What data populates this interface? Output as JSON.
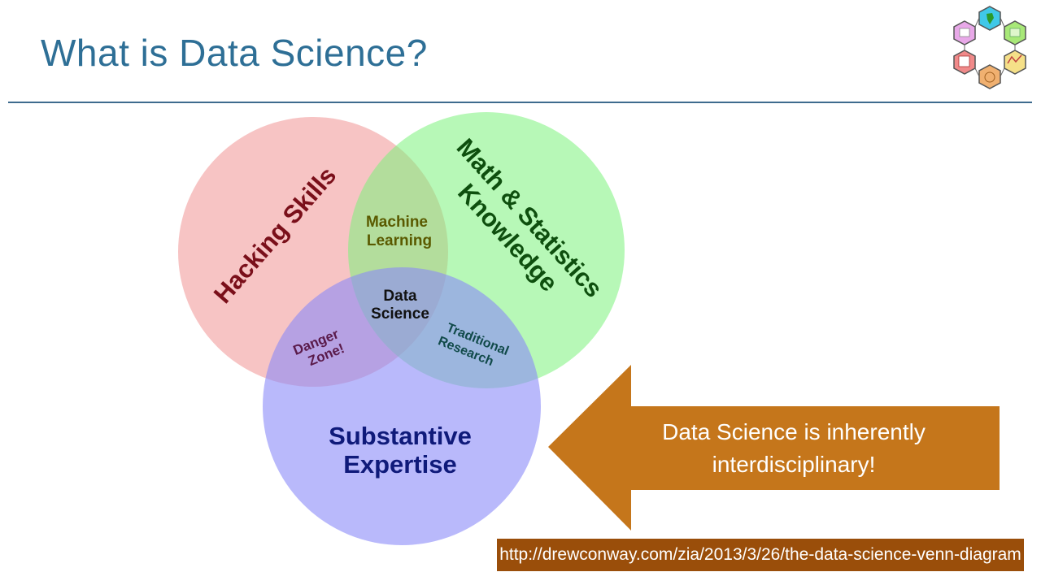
{
  "slide": {
    "title": "What is Data Science?"
  },
  "venn": {
    "hacking": "Hacking Skills",
    "math_line1": "Math & Statistics",
    "math_line2": "Knowledge",
    "substantive_line1": "Substantive",
    "substantive_line2": "Expertise",
    "ml_line1": "Machine",
    "ml_line2": "Learning",
    "ds_line1": "Data",
    "ds_line2": "Science",
    "danger_line1": "Danger",
    "danger_line2": "Zone!",
    "trad_line1": "Traditional",
    "trad_line2": "Research",
    "colors": {
      "hacking": "#f08a8a",
      "math": "#7cf27c",
      "substantive": "#8a8af8"
    }
  },
  "callout": {
    "line1": "Data Science is inherently",
    "line2": "interdisciplinary!",
    "color": "#c5761b"
  },
  "source": {
    "url": "http://drewconway.com/zia/2013/3/26/the-data-science-venn-diagram"
  },
  "logo": {
    "icon": "hexagon-cluster-logo"
  }
}
